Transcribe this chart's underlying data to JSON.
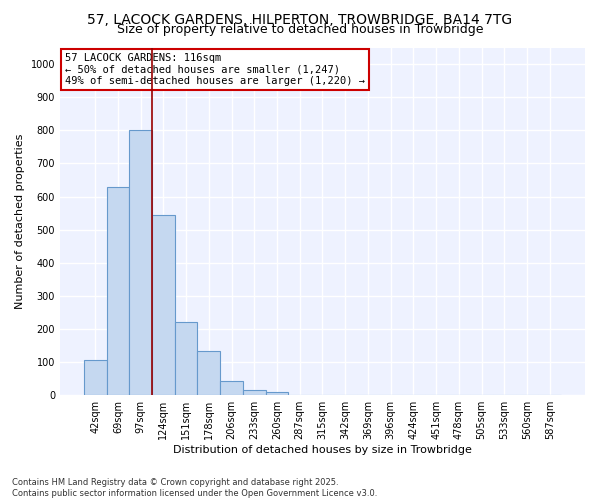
{
  "title_line1": "57, LACOCK GARDENS, HILPERTON, TROWBRIDGE, BA14 7TG",
  "title_line2": "Size of property relative to detached houses in Trowbridge",
  "xlabel": "Distribution of detached houses by size in Trowbridge",
  "ylabel": "Number of detached properties",
  "bar_values": [
    107,
    630,
    800,
    545,
    220,
    135,
    42,
    15,
    10,
    0,
    0,
    0,
    0,
    0,
    0,
    0,
    0,
    0,
    0,
    0,
    0
  ],
  "categories": [
    "42sqm",
    "69sqm",
    "97sqm",
    "124sqm",
    "151sqm",
    "178sqm",
    "206sqm",
    "233sqm",
    "260sqm",
    "287sqm",
    "315sqm",
    "342sqm",
    "369sqm",
    "396sqm",
    "424sqm",
    "451sqm",
    "478sqm",
    "505sqm",
    "533sqm",
    "560sqm",
    "587sqm"
  ],
  "bar_color": "#c5d8f0",
  "bar_edge_color": "#6699cc",
  "vline_x": 2.5,
  "vline_color": "#990000",
  "annotation_box_text": "57 LACOCK GARDENS: 116sqm\n← 50% of detached houses are smaller (1,247)\n49% of semi-detached houses are larger (1,220) →",
  "annotation_box_facecolor": "white",
  "annotation_box_edgecolor": "#cc0000",
  "ylim": [
    0,
    1050
  ],
  "yticks": [
    0,
    100,
    200,
    300,
    400,
    500,
    600,
    700,
    800,
    900,
    1000
  ],
  "background_color": "#eef2ff",
  "grid_color": "white",
  "footnote": "Contains HM Land Registry data © Crown copyright and database right 2025.\nContains public sector information licensed under the Open Government Licence v3.0.",
  "title_fontsize": 10,
  "subtitle_fontsize": 9,
  "tick_fontsize": 7,
  "ylabel_fontsize": 8,
  "xlabel_fontsize": 8,
  "annotation_fontsize": 7.5,
  "footnote_fontsize": 6
}
